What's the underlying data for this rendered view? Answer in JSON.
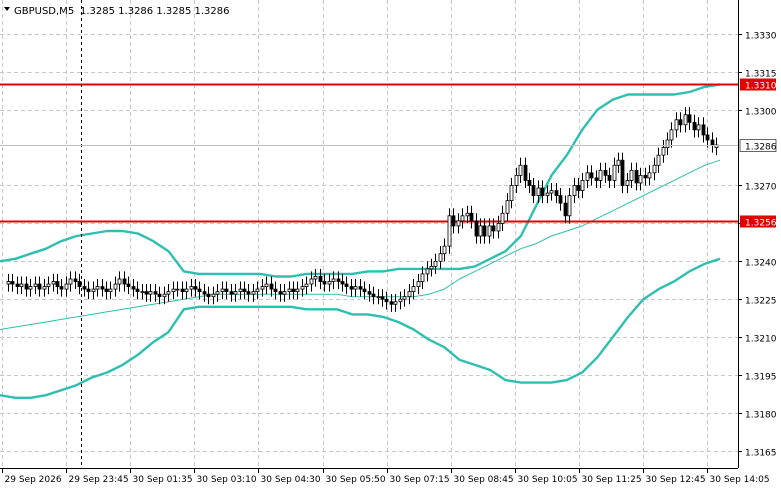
{
  "header": {
    "symbol": "GBPUSD,M5",
    "ohlc": "1.3285 1.3286 1.3285 1.3286"
  },
  "colors": {
    "background": "#ffffff",
    "grid": "#c8c8c8",
    "axis": "#000000",
    "candle_body_up": "#ffffff",
    "candle_body_down": "#000000",
    "candle_outline": "#000000",
    "bollinger": "#2ebfb0",
    "level_line": "#e00000",
    "label_bg_red": "#e00000",
    "label_fg_red": "#ffffff",
    "label_bg_current": "#ffffff",
    "label_fg_current": "#000000"
  },
  "chart_data": {
    "type": "line",
    "ylim": [
      1.3159,
      1.3343
    ],
    "y_ticks": [
      "1.3330",
      "1.3315",
      "1.3300",
      "1.3270",
      "1.3255",
      "1.3240",
      "1.3225",
      "1.3210",
      "1.3195",
      "1.3180",
      "1.3165"
    ],
    "x_tick_labels": [
      "29 Sep 2026",
      "29 Sep 23:45",
      "30 Sep 01:35",
      "30 Sep 03:10",
      "30 Sep 04:30",
      "30 Sep 05:50",
      "30 Sep 07:15",
      "30 Sep 08:45",
      "30 Sep 10:05",
      "30 Sep 11:25",
      "30 Sep 12:45",
      "30 Sep 14:05"
    ],
    "grid": true,
    "vertical_marker_label": "29 Sep 23:45",
    "horizontal_levels": [
      {
        "label": "1.3310",
        "value": 1.331
      },
      {
        "label": "1.3256",
        "value": 1.3256
      }
    ],
    "current_price": {
      "label": "1.3286",
      "value": 1.3286
    },
    "series": [
      {
        "type": "candlestick",
        "close": [
          1.3232,
          1.3231,
          1.323,
          1.3231,
          1.3229,
          1.323,
          1.3231,
          1.3229,
          1.323,
          1.3231,
          1.3232,
          1.323,
          1.3229,
          1.3231,
          1.3233,
          1.3232,
          1.323,
          1.3229,
          1.3228,
          1.3229,
          1.323,
          1.3229,
          1.3228,
          1.3229,
          1.3231,
          1.3233,
          1.3231,
          1.323,
          1.3229,
          1.3228,
          1.3228,
          1.3227,
          1.3228,
          1.3227,
          1.3226,
          1.3227,
          1.3228,
          1.3229,
          1.3229,
          1.3228,
          1.3229,
          1.323,
          1.3229,
          1.3228,
          1.3227,
          1.3226,
          1.3227,
          1.3228,
          1.3229,
          1.3228,
          1.3227,
          1.3228,
          1.3229,
          1.3228,
          1.3227,
          1.3228,
          1.3229,
          1.323,
          1.3231,
          1.3229,
          1.3228,
          1.3227,
          1.3228,
          1.3229,
          1.3228,
          1.3229,
          1.323,
          1.3231,
          1.3233,
          1.3234,
          1.3232,
          1.3231,
          1.3232,
          1.3233,
          1.3232,
          1.3231,
          1.323,
          1.3229,
          1.323,
          1.3229,
          1.3228,
          1.3227,
          1.3226,
          1.3226,
          1.3225,
          1.3224,
          1.3223,
          1.3224,
          1.3225,
          1.3226,
          1.3228,
          1.323,
          1.3232,
          1.3235,
          1.3237,
          1.3238,
          1.324,
          1.3243,
          1.3246,
          1.3258,
          1.3254,
          1.3256,
          1.3258,
          1.3259,
          1.3256,
          1.325,
          1.3254,
          1.325,
          1.3254,
          1.3252,
          1.3255,
          1.3259,
          1.3264,
          1.327,
          1.3274,
          1.3278,
          1.3272,
          1.327,
          1.3266,
          1.3269,
          1.3266,
          1.3267,
          1.3268,
          1.3266,
          1.3263,
          1.3258,
          1.3266,
          1.327,
          1.3268,
          1.3272,
          1.3275,
          1.3273,
          1.3272,
          1.3276,
          1.3274,
          1.3272,
          1.3278,
          1.328,
          1.327,
          1.3272,
          1.3276,
          1.3271,
          1.3274,
          1.3273,
          1.3275,
          1.3278,
          1.3282,
          1.3285,
          1.3288,
          1.3292,
          1.3296,
          1.3294,
          1.3298,
          1.3295,
          1.3292,
          1.3294,
          1.329,
          1.3288,
          1.3286,
          1.3286
        ],
        "open": [
          1.3231,
          1.3232,
          1.3231,
          1.323,
          1.3231,
          1.3229,
          1.323,
          1.3231,
          1.3229,
          1.323,
          1.3231,
          1.3232,
          1.323,
          1.3229,
          1.3231,
          1.3233,
          1.3232,
          1.323,
          1.3229,
          1.3228,
          1.3229,
          1.323,
          1.3229,
          1.3228,
          1.3229,
          1.3231,
          1.3233,
          1.3231,
          1.323,
          1.3229,
          1.3228,
          1.3228,
          1.3227,
          1.3228,
          1.3227,
          1.3226,
          1.3227,
          1.3228,
          1.3229,
          1.3229,
          1.3228,
          1.3229,
          1.323,
          1.3229,
          1.3228,
          1.3227,
          1.3226,
          1.3227,
          1.3228,
          1.3229,
          1.3228,
          1.3227,
          1.3228,
          1.3229,
          1.3228,
          1.3227,
          1.3228,
          1.3229,
          1.323,
          1.3231,
          1.3229,
          1.3228,
          1.3227,
          1.3228,
          1.3229,
          1.3228,
          1.3229,
          1.323,
          1.3231,
          1.3233,
          1.3234,
          1.3232,
          1.3231,
          1.3232,
          1.3233,
          1.3232,
          1.3231,
          1.323,
          1.3229,
          1.323,
          1.3229,
          1.3228,
          1.3227,
          1.3226,
          1.3226,
          1.3225,
          1.3224,
          1.3223,
          1.3224,
          1.3225,
          1.3226,
          1.3228,
          1.323,
          1.3232,
          1.3235,
          1.3237,
          1.3238,
          1.324,
          1.3243,
          1.3246,
          1.3258,
          1.3254,
          1.3256,
          1.3258,
          1.3259,
          1.3256,
          1.325,
          1.3254,
          1.325,
          1.3254,
          1.3252,
          1.3255,
          1.3259,
          1.3264,
          1.327,
          1.3274,
          1.3278,
          1.3272,
          1.327,
          1.3266,
          1.3269,
          1.3266,
          1.3267,
          1.3268,
          1.3266,
          1.3263,
          1.3258,
          1.3266,
          1.327,
          1.3268,
          1.3272,
          1.3275,
          1.3273,
          1.3272,
          1.3276,
          1.3274,
          1.3272,
          1.3278,
          1.328,
          1.327,
          1.3272,
          1.3276,
          1.3271,
          1.3274,
          1.3273,
          1.3275,
          1.3278,
          1.3282,
          1.3285,
          1.3288,
          1.3292,
          1.3296,
          1.3294,
          1.3298,
          1.3295,
          1.3292,
          1.3294,
          1.329,
          1.3288,
          1.3285
        ]
      },
      {
        "type": "band",
        "upper": [
          1.324,
          1.3241,
          1.3243,
          1.3245,
          1.3248,
          1.325,
          1.3251,
          1.3252,
          1.3252,
          1.3251,
          1.3248,
          1.3244,
          1.3236,
          1.3235,
          1.3235,
          1.3235,
          1.3235,
          1.3235,
          1.3234,
          1.3234,
          1.3235,
          1.3235,
          1.3235,
          1.3235,
          1.3236,
          1.3236,
          1.3237,
          1.3237,
          1.3237,
          1.3237,
          1.3237,
          1.3238,
          1.3241,
          1.3244,
          1.325,
          1.3262,
          1.3274,
          1.3282,
          1.3292,
          1.33,
          1.3304,
          1.3306,
          1.3306,
          1.3306,
          1.3306,
          1.3307,
          1.3309,
          1.331
        ],
        "middle": [
          1.3213,
          1.3214,
          1.3215,
          1.3216,
          1.3217,
          1.3218,
          1.3219,
          1.322,
          1.3221,
          1.3222,
          1.3223,
          1.3224,
          1.3225,
          1.3226,
          1.3227,
          1.3227,
          1.3227,
          1.3227,
          1.3227,
          1.3227,
          1.3227,
          1.3227,
          1.3227,
          1.3226,
          1.3226,
          1.3226,
          1.3226,
          1.3226,
          1.3227,
          1.3229,
          1.3233,
          1.3236,
          1.3239,
          1.3242,
          1.3245,
          1.3247,
          1.325,
          1.3252,
          1.3254,
          1.3257,
          1.326,
          1.3263,
          1.3266,
          1.3269,
          1.3272,
          1.3275,
          1.3278,
          1.328
        ],
        "lower": [
          1.3187,
          1.3186,
          1.3186,
          1.3187,
          1.3189,
          1.3191,
          1.3194,
          1.3196,
          1.3199,
          1.3203,
          1.3208,
          1.3212,
          1.3221,
          1.3222,
          1.3222,
          1.3222,
          1.3222,
          1.3222,
          1.3222,
          1.3222,
          1.3221,
          1.3221,
          1.3221,
          1.3219,
          1.3219,
          1.3218,
          1.3216,
          1.3213,
          1.3209,
          1.3206,
          1.3201,
          1.3199,
          1.3197,
          1.3193,
          1.3192,
          1.3192,
          1.3192,
          1.3193,
          1.3196,
          1.3202,
          1.321,
          1.3218,
          1.3225,
          1.3229,
          1.3232,
          1.3236,
          1.3239,
          1.3241
        ]
      }
    ]
  }
}
